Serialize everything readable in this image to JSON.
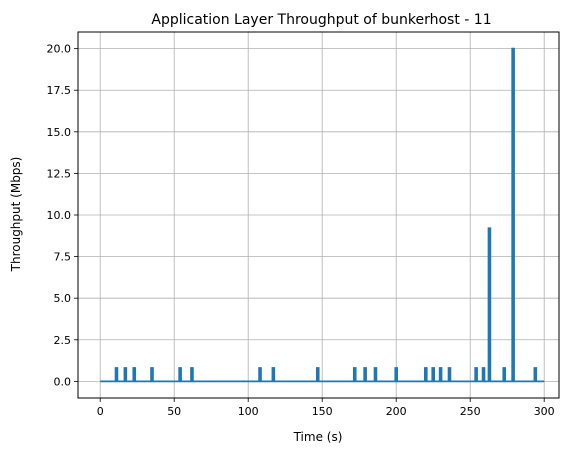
{
  "chart_data": {
    "type": "line",
    "title": "Application Layer Throughput of bunkerhost - 11",
    "xlabel": "Time (s)",
    "ylabel": "Throughput (Mbps)",
    "xlim": [
      -15,
      310
    ],
    "ylim": [
      -1.0,
      21.0
    ],
    "grid": true,
    "xticks": [
      0,
      50,
      100,
      150,
      200,
      250,
      300
    ],
    "xtick_labels": [
      "0",
      "50",
      "100",
      "150",
      "200",
      "250",
      "300"
    ],
    "yticks": [
      0.0,
      2.5,
      5.0,
      7.5,
      10.0,
      12.5,
      15.0,
      17.5,
      20.0
    ],
    "ytick_labels": [
      "0.0",
      "2.5",
      "5.0",
      "7.5",
      "10.0",
      "12.5",
      "15.0",
      "17.5",
      "20.0"
    ],
    "series": [
      {
        "color": "#1f77b4",
        "spikes": [
          {
            "t": 11,
            "v": 0.8
          },
          {
            "t": 17,
            "v": 0.8
          },
          {
            "t": 23,
            "v": 0.8
          },
          {
            "t": 35,
            "v": 0.8
          },
          {
            "t": 54,
            "v": 0.8
          },
          {
            "t": 62,
            "v": 0.8
          },
          {
            "t": 108,
            "v": 0.8
          },
          {
            "t": 117,
            "v": 0.8
          },
          {
            "t": 147,
            "v": 0.8
          },
          {
            "t": 172,
            "v": 0.8
          },
          {
            "t": 179,
            "v": 0.8
          },
          {
            "t": 186,
            "v": 0.8
          },
          {
            "t": 200,
            "v": 0.8
          },
          {
            "t": 220,
            "v": 0.8
          },
          {
            "t": 225,
            "v": 0.8
          },
          {
            "t": 230,
            "v": 0.8
          },
          {
            "t": 236,
            "v": 0.8
          },
          {
            "t": 254,
            "v": 0.8
          },
          {
            "t": 259,
            "v": 0.8
          },
          {
            "t": 263,
            "v": 9.2
          },
          {
            "t": 273,
            "v": 0.8
          },
          {
            "t": 279,
            "v": 20.0
          },
          {
            "t": 294,
            "v": 0.8
          }
        ],
        "t_start": 0,
        "t_end": 300
      }
    ]
  }
}
